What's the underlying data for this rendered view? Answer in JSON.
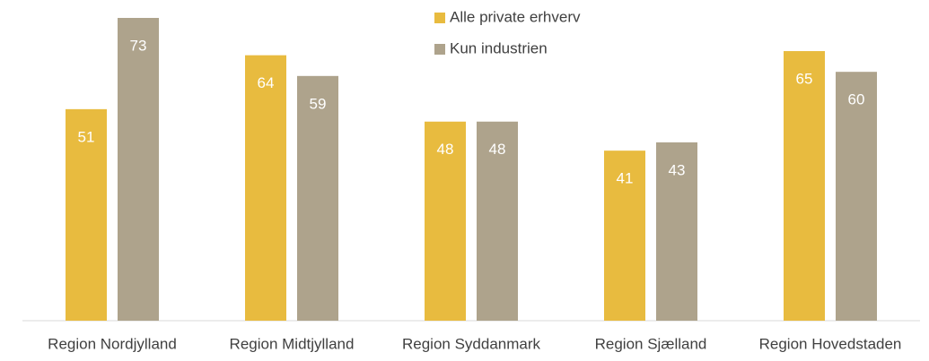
{
  "chart_data": {
    "type": "bar",
    "categories": [
      "Region Nordjylland",
      "Region Midtjylland",
      "Region Syddanmark",
      "Region Sjælland",
      "Region Hovedstaden"
    ],
    "series": [
      {
        "name": "Alle private erhverv",
        "color": "#e8bb3f",
        "values": [
          51,
          64,
          48,
          41,
          65
        ]
      },
      {
        "name": "Kun industrien",
        "color": "#aea38c",
        "values": [
          73,
          59,
          48,
          43,
          60
        ]
      }
    ]
  }
}
